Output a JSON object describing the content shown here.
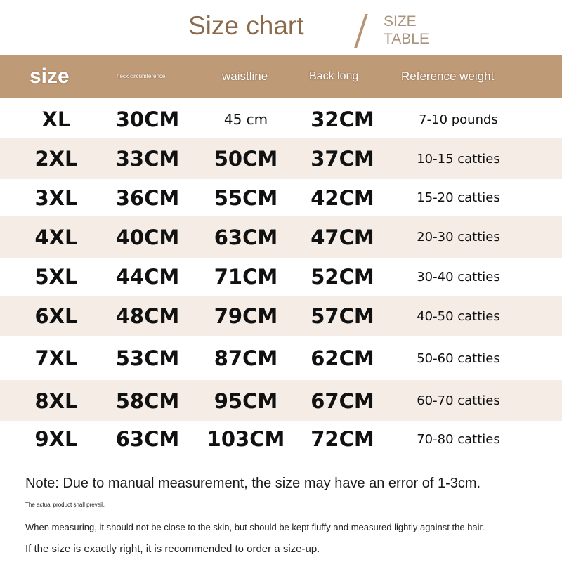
{
  "title": "Size chart",
  "subtitle": [
    "SIZE",
    "TABLE"
  ],
  "header": [
    "size",
    "neck circumference",
    "waistline",
    "Back long",
    "Reference weight"
  ],
  "rows": [
    [
      "XL",
      "30CM",
      "45 cm",
      "32CM",
      "7-10 pounds"
    ],
    [
      "2XL",
      "33CM",
      "50CM",
      "37CM",
      "10-15 catties"
    ],
    [
      "3XL",
      "36CM",
      "55CM",
      "42CM",
      "15-20 catties"
    ],
    [
      "4XL",
      "40CM",
      "63CM",
      "47CM",
      "20-30 catties"
    ],
    [
      "5XL",
      "44CM",
      "71CM",
      "52CM",
      "30-40 catties"
    ],
    [
      "6XL",
      "48CM",
      "79CM",
      "57CM",
      "40-50 catties"
    ],
    [
      "7XL",
      "53CM",
      "87CM",
      "62CM",
      "50-60 catties"
    ],
    [
      "8XL",
      "58CM",
      "95CM",
      "67CM",
      "60-70 catties"
    ],
    [
      "9XL",
      "63CM",
      "103CM",
      "72CM",
      "70-80 catties"
    ]
  ],
  "notes": [
    "Note: Due to manual measurement, the size may have an error of 1-3cm.",
    "The actual product shall prevail.",
    "When measuring, it should not be close to the skin, but should be kept fluffy and measured lightly against the hair.",
    "If the size is exactly right, it is recommended to order a size-up."
  ],
  "colors": {
    "header_bg": "#bf9a77",
    "title": "#8a6a4b",
    "row_shade": "#f5ede5"
  }
}
